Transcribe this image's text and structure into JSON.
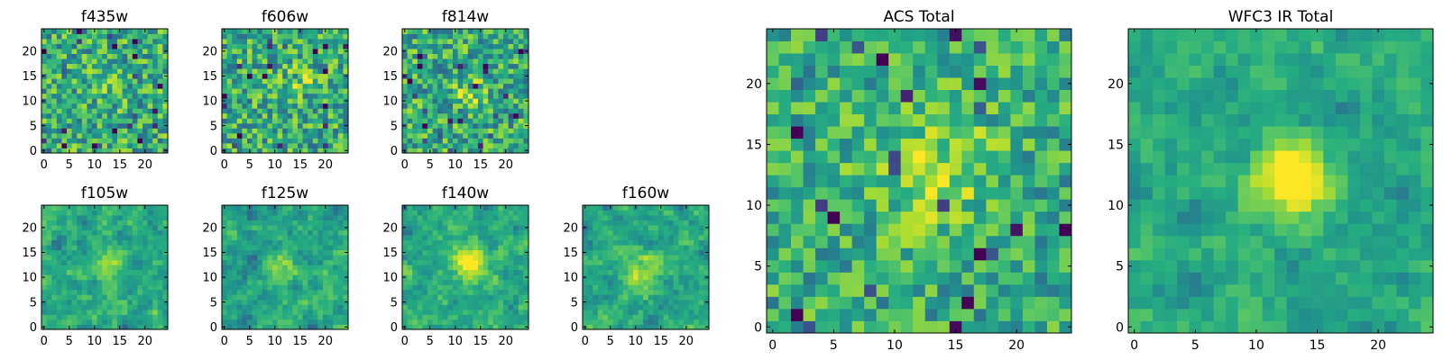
{
  "chart_data": [
    {
      "type": "heatmap",
      "title": "f435w",
      "colormap": "viridis",
      "grid": false,
      "xlim": [
        -0.5,
        24.5
      ],
      "ylim": [
        -0.5,
        24.5
      ],
      "xticks": [
        0,
        5,
        10,
        15,
        20
      ],
      "yticks": [
        0,
        5,
        10,
        15,
        20
      ],
      "grid_size": [
        25,
        25
      ],
      "values": "25x25 pixel cutout, roughly uniform noise field (mostly green-yellow, scattered dark pixels)"
    },
    {
      "type": "heatmap",
      "title": "f606w",
      "colormap": "viridis",
      "grid": false,
      "xlim": [
        -0.5,
        24.5
      ],
      "ylim": [
        -0.5,
        24.5
      ],
      "xticks": [
        0,
        5,
        10,
        15,
        20
      ],
      "yticks": [
        0,
        5,
        10,
        15,
        20
      ],
      "grid_size": [
        25,
        25
      ],
      "values": "25x25 pixel cutout, noise field with faint bright source near (15, 14)"
    },
    {
      "type": "heatmap",
      "title": "f814w",
      "colormap": "viridis",
      "grid": false,
      "xlim": [
        -0.5,
        24.5
      ],
      "ylim": [
        -0.5,
        24.5
      ],
      "xticks": [
        0,
        5,
        10,
        15,
        20
      ],
      "yticks": [
        0,
        5,
        10,
        15,
        20
      ],
      "grid_size": [
        25,
        25
      ],
      "values": "25x25 pixel cutout, noise field with faint bright source near (13, 12)"
    },
    {
      "type": "heatmap",
      "title": "f105w",
      "colormap": "viridis",
      "grid": false,
      "xlim": [
        -0.5,
        24.5
      ],
      "ylim": [
        -0.5,
        24.5
      ],
      "xticks": [
        0,
        5,
        10,
        15,
        20
      ],
      "yticks": [
        0,
        5,
        10,
        15,
        20
      ],
      "grid_size": [
        25,
        25
      ],
      "values": "25x25 pixel cutout, smoothed noise with bright source near (13, 12)"
    },
    {
      "type": "heatmap",
      "title": "f125w",
      "colormap": "viridis",
      "grid": false,
      "xlim": [
        -0.5,
        24.5
      ],
      "ylim": [
        -0.5,
        24.5
      ],
      "xticks": [
        0,
        5,
        10,
        15,
        20
      ],
      "yticks": [
        0,
        5,
        10,
        15,
        20
      ],
      "grid_size": [
        25,
        25
      ],
      "values": "25x25 pixel cutout, smoothed noise with bright source near (12, 12)"
    },
    {
      "type": "heatmap",
      "title": "f140w",
      "colormap": "viridis",
      "grid": false,
      "xlim": [
        -0.5,
        24.5
      ],
      "ylim": [
        -0.5,
        24.5
      ],
      "xticks": [
        0,
        5,
        10,
        15,
        20
      ],
      "yticks": [
        0,
        5,
        10,
        15,
        20
      ],
      "grid_size": [
        25,
        25
      ],
      "values": "25x25 pixel cutout, smoothed noise with bright source near (13, 13)"
    },
    {
      "type": "heatmap",
      "title": "f160w",
      "colormap": "viridis",
      "grid": false,
      "xlim": [
        -0.5,
        24.5
      ],
      "ylim": [
        -0.5,
        24.5
      ],
      "xticks": [
        0,
        5,
        10,
        15,
        20
      ],
      "yticks": [
        0,
        5,
        10,
        15,
        20
      ],
      "grid_size": [
        25,
        25
      ],
      "values": "25x25 pixel cutout, smoothed noise with bright source near (12, 11)"
    },
    {
      "type": "heatmap",
      "title": "ACS Total",
      "colormap": "viridis",
      "grid": false,
      "xlim": [
        -0.5,
        24.5
      ],
      "ylim": [
        -0.5,
        24.5
      ],
      "xticks": [
        0,
        5,
        10,
        15,
        20
      ],
      "yticks": [
        0,
        5,
        10,
        15,
        20
      ],
      "grid_size": [
        25,
        25
      ],
      "values": "25x25 pixel stack of ACS bands, noisy field with bright region around (13, 13)"
    },
    {
      "type": "heatmap",
      "title": "WFC3 IR Total",
      "colormap": "viridis",
      "grid": false,
      "xlim": [
        -0.5,
        24.5
      ],
      "ylim": [
        -0.5,
        24.5
      ],
      "xticks": [
        0,
        5,
        10,
        15,
        20
      ],
      "yticks": [
        0,
        5,
        10,
        15,
        20
      ],
      "grid_size": [
        25,
        25
      ],
      "values": "25x25 pixel stack of WFC3 IR bands, compact bright source centred near (13, 12)"
    }
  ]
}
